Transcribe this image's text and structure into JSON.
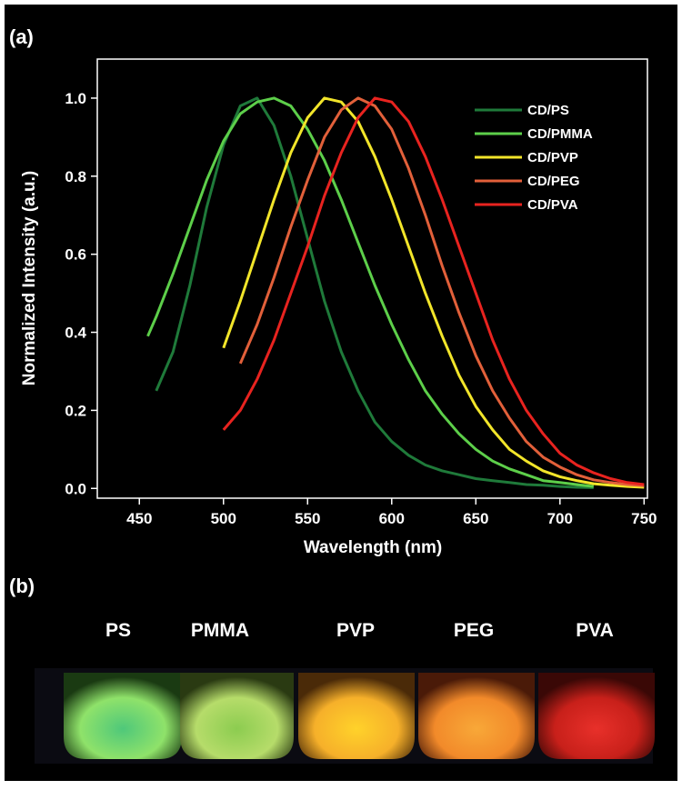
{
  "panel_labels": [
    "(a)",
    "(b)"
  ],
  "photo": {
    "labels": [
      "PS",
      "PMMA",
      "PVP",
      "PEG",
      "PVA"
    ]
  },
  "chart_data": {
    "type": "line",
    "x_label": "Wavelength (nm)",
    "y_label": "Normalized Intensity (a.u.)",
    "x": [
      455,
      460,
      470,
      480,
      490,
      500,
      510,
      520,
      530,
      540,
      550,
      560,
      570,
      580,
      590,
      600,
      610,
      620,
      630,
      640,
      650,
      660,
      670,
      680,
      690,
      700,
      710,
      720,
      730,
      740,
      750
    ],
    "series": [
      {
        "name": "CD/PS",
        "color": "#1f7a3a",
        "values": [
          null,
          0.25,
          0.35,
          0.52,
          0.72,
          0.88,
          0.98,
          1.0,
          0.93,
          0.8,
          0.64,
          0.48,
          0.35,
          0.25,
          0.17,
          0.12,
          0.085,
          0.06,
          0.045,
          0.035,
          0.025,
          0.02,
          0.015,
          0.01,
          0.008,
          0.005,
          0.003,
          0.002,
          null,
          null,
          null
        ]
      },
      {
        "name": "CD/PMMA",
        "color": "#5dcf4a",
        "values": [
          0.39,
          0.44,
          0.55,
          0.67,
          0.79,
          0.89,
          0.96,
          0.99,
          1.0,
          0.98,
          0.92,
          0.84,
          0.74,
          0.63,
          0.52,
          0.42,
          0.33,
          0.25,
          0.19,
          0.14,
          0.1,
          0.07,
          0.05,
          0.035,
          0.02,
          0.015,
          0.01,
          0.005,
          null,
          null,
          null
        ]
      },
      {
        "name": "CD/PVP",
        "color": "#f2e52a",
        "values": [
          null,
          null,
          null,
          null,
          null,
          0.36,
          0.48,
          0.61,
          0.74,
          0.86,
          0.95,
          1.0,
          0.99,
          0.94,
          0.85,
          0.74,
          0.62,
          0.5,
          0.39,
          0.29,
          0.21,
          0.15,
          0.1,
          0.07,
          0.045,
          0.03,
          0.02,
          0.012,
          0.008,
          0.005,
          0.003
        ]
      },
      {
        "name": "CD/PEG",
        "color": "#e2603a",
        "values": [
          null,
          null,
          null,
          null,
          null,
          null,
          0.32,
          0.42,
          0.54,
          0.67,
          0.79,
          0.9,
          0.97,
          1.0,
          0.98,
          0.92,
          0.82,
          0.7,
          0.57,
          0.45,
          0.34,
          0.25,
          0.18,
          0.12,
          0.08,
          0.055,
          0.035,
          0.022,
          0.015,
          0.01,
          0.007
        ]
      },
      {
        "name": "CD/PVA",
        "color": "#e8231f",
        "values": [
          null,
          null,
          null,
          null,
          null,
          0.15,
          0.2,
          0.28,
          0.38,
          0.5,
          0.62,
          0.75,
          0.86,
          0.95,
          1.0,
          0.99,
          0.94,
          0.85,
          0.74,
          0.62,
          0.5,
          0.38,
          0.28,
          0.2,
          0.14,
          0.09,
          0.06,
          0.04,
          0.025,
          0.015,
          0.01
        ]
      }
    ],
    "xlim": [
      425,
      752
    ],
    "xticks": [
      450,
      500,
      550,
      600,
      650,
      700,
      750
    ],
    "ylim": [
      -0.025,
      1.1
    ],
    "yticks": [
      {
        "value": 0,
        "label": "0.0"
      },
      0.2,
      0.4,
      0.6,
      0.8,
      {
        "value": 1,
        "label": "1.0"
      }
    ],
    "legend": "upper right"
  }
}
